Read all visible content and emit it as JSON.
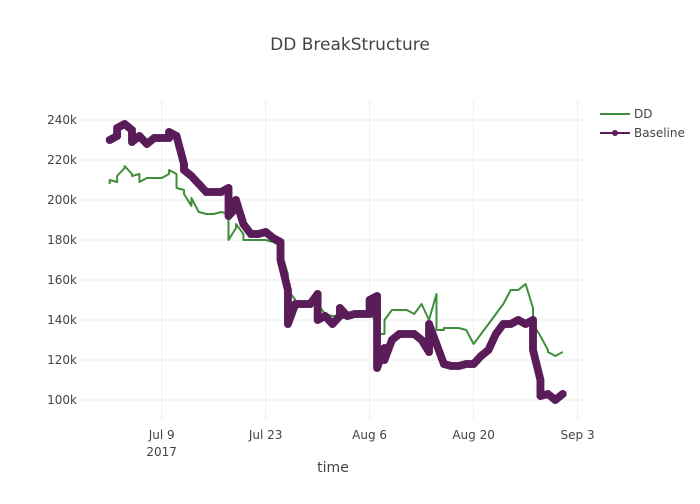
{
  "chart_data": {
    "type": "line",
    "title": "DD BreakStructure",
    "xlabel": "time",
    "ylabel": "",
    "x_range": [
      "2017-06-28",
      "2017-09-04"
    ],
    "ylim": [
      90000,
      250000
    ],
    "x_ticks": [
      {
        "date": "2017-07-09",
        "label": "Jul 9",
        "sublabel": "2017"
      },
      {
        "date": "2017-07-23",
        "label": "Jul 23",
        "sublabel": ""
      },
      {
        "date": "2017-08-06",
        "label": "Aug 6",
        "sublabel": ""
      },
      {
        "date": "2017-08-20",
        "label": "Aug 20",
        "sublabel": ""
      },
      {
        "date": "2017-09-03",
        "label": "Sep 3",
        "sublabel": ""
      }
    ],
    "y_ticks": [
      {
        "value": 100000,
        "label": "100k"
      },
      {
        "value": 120000,
        "label": "120k"
      },
      {
        "value": 140000,
        "label": "140k"
      },
      {
        "value": 160000,
        "label": "160k"
      },
      {
        "value": 180000,
        "label": "180k"
      },
      {
        "value": 200000,
        "label": "200k"
      },
      {
        "value": 220000,
        "label": "220k"
      },
      {
        "value": 240000,
        "label": "240k"
      }
    ],
    "grid": true,
    "legend_position": "top-right",
    "series": [
      {
        "name": "DD",
        "color": "#3f8f3a",
        "mode": "lines",
        "x": [
          "2017-07-02",
          "2017-07-02",
          "2017-07-03",
          "2017-07-03",
          "2017-07-04",
          "2017-07-04",
          "2017-07-05",
          "2017-07-05",
          "2017-07-06",
          "2017-07-06",
          "2017-07-07",
          "2017-07-08",
          "2017-07-09",
          "2017-07-10",
          "2017-07-10",
          "2017-07-11",
          "2017-07-11",
          "2017-07-12",
          "2017-07-12",
          "2017-07-13",
          "2017-07-13",
          "2017-07-14",
          "2017-07-15",
          "2017-07-15",
          "2017-07-16",
          "2017-07-17",
          "2017-07-18",
          "2017-07-18",
          "2017-07-19",
          "2017-07-19",
          "2017-07-20",
          "2017-07-20",
          "2017-07-21",
          "2017-07-22",
          "2017-07-23",
          "2017-07-24",
          "2017-07-25",
          "2017-07-25",
          "2017-07-26",
          "2017-07-26",
          "2017-07-27",
          "2017-07-27",
          "2017-07-28",
          "2017-07-29",
          "2017-07-30",
          "2017-07-30",
          "2017-07-31",
          "2017-08-01",
          "2017-08-02",
          "2017-08-02",
          "2017-08-03",
          "2017-08-04",
          "2017-08-05",
          "2017-08-06",
          "2017-08-07",
          "2017-08-07",
          "2017-08-08",
          "2017-08-08",
          "2017-08-09",
          "2017-08-10",
          "2017-08-11",
          "2017-08-12",
          "2017-08-13",
          "2017-08-14",
          "2017-08-15",
          "2017-08-15",
          "2017-08-16",
          "2017-08-16",
          "2017-08-17",
          "2017-08-18",
          "2017-08-19",
          "2017-08-20",
          "2017-08-21",
          "2017-08-22",
          "2017-08-23",
          "2017-08-24",
          "2017-08-25",
          "2017-08-26",
          "2017-08-26",
          "2017-08-27",
          "2017-08-28",
          "2017-08-28",
          "2017-08-29",
          "2017-08-30",
          "2017-08-30",
          "2017-08-31",
          "2017-09-01"
        ],
        "y": [
          208000,
          210000,
          209000,
          212000,
          216000,
          217000,
          213000,
          212000,
          213000,
          209000,
          211000,
          211000,
          211000,
          213000,
          215000,
          213000,
          206000,
          205000,
          203000,
          197000,
          201000,
          194000,
          193000,
          193000,
          193000,
          194000,
          193000,
          180000,
          186000,
          188000,
          183000,
          180000,
          180000,
          180000,
          180000,
          179000,
          177000,
          175000,
          163000,
          155000,
          150000,
          148000,
          148000,
          148000,
          148000,
          148000,
          143000,
          142000,
          142000,
          141000,
          141000,
          143000,
          143000,
          143000,
          139000,
          133000,
          133000,
          140000,
          145000,
          145000,
          145000,
          143000,
          148000,
          140000,
          153000,
          135000,
          135000,
          136000,
          136000,
          136000,
          135000,
          128000,
          133000,
          138000,
          143000,
          148000,
          155000,
          155000,
          155000,
          158000,
          146000,
          138000,
          132000,
          125000,
          124000,
          122000,
          124000
        ]
      },
      {
        "name": "Baseline",
        "color": "#5a1d59",
        "mode": "lines+markers",
        "x": [
          "2017-07-02",
          "2017-07-03",
          "2017-07-03",
          "2017-07-04",
          "2017-07-05",
          "2017-07-05",
          "2017-07-06",
          "2017-07-07",
          "2017-07-08",
          "2017-07-09",
          "2017-07-10",
          "2017-07-10",
          "2017-07-11",
          "2017-07-12",
          "2017-07-12",
          "2017-07-13",
          "2017-07-14",
          "2017-07-15",
          "2017-07-16",
          "2017-07-17",
          "2017-07-18",
          "2017-07-18",
          "2017-07-19",
          "2017-07-19",
          "2017-07-20",
          "2017-07-21",
          "2017-07-22",
          "2017-07-23",
          "2017-07-24",
          "2017-07-25",
          "2017-07-25",
          "2017-07-26",
          "2017-07-26",
          "2017-07-26",
          "2017-07-27",
          "2017-07-28",
          "2017-07-29",
          "2017-07-30",
          "2017-07-30",
          "2017-07-31",
          "2017-08-01",
          "2017-08-02",
          "2017-08-02",
          "2017-08-03",
          "2017-08-04",
          "2017-08-05",
          "2017-08-06",
          "2017-08-06",
          "2017-08-07",
          "2017-08-07",
          "2017-08-08",
          "2017-08-08",
          "2017-08-09",
          "2017-08-10",
          "2017-08-11",
          "2017-08-12",
          "2017-08-13",
          "2017-08-14",
          "2017-08-14",
          "2017-08-15",
          "2017-08-16",
          "2017-08-17",
          "2017-08-18",
          "2017-08-19",
          "2017-08-20",
          "2017-08-21",
          "2017-08-22",
          "2017-08-23",
          "2017-08-24",
          "2017-08-25",
          "2017-08-26",
          "2017-08-27",
          "2017-08-28",
          "2017-08-28",
          "2017-08-29",
          "2017-08-29",
          "2017-08-30",
          "2017-08-31",
          "2017-09-01"
        ],
        "y": [
          230000,
          232000,
          236000,
          238000,
          235000,
          229000,
          232000,
          228000,
          231000,
          231000,
          231000,
          234000,
          232000,
          218000,
          215000,
          212000,
          208000,
          204000,
          204000,
          204000,
          206000,
          192000,
          196000,
          200000,
          188000,
          183000,
          183000,
          184000,
          181000,
          179000,
          170000,
          155000,
          145000,
          138000,
          148000,
          148000,
          148000,
          153000,
          140000,
          142000,
          138000,
          142000,
          146000,
          142000,
          143000,
          143000,
          143000,
          150000,
          152000,
          116000,
          126000,
          120000,
          130000,
          133000,
          133000,
          133000,
          130000,
          124000,
          138000,
          128000,
          118000,
          117000,
          117000,
          118000,
          118000,
          122000,
          125000,
          133000,
          138000,
          138000,
          140000,
          138000,
          140000,
          125000,
          110000,
          102000,
          103000,
          100000,
          103000
        ]
      }
    ]
  }
}
